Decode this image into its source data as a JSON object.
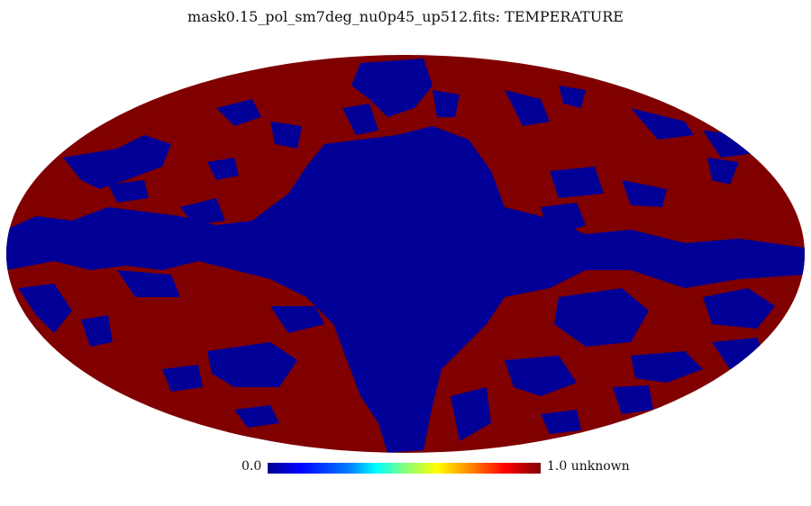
{
  "title": "mask0.15_pol_sm7deg_nu0p45_up512.fits: TEMPERATURE",
  "colorbar": {
    "min_label": "0.0",
    "max_label": "1.0 unknown"
  },
  "colors": {
    "masked": "#000096",
    "unmasked": "#800000"
  }
}
